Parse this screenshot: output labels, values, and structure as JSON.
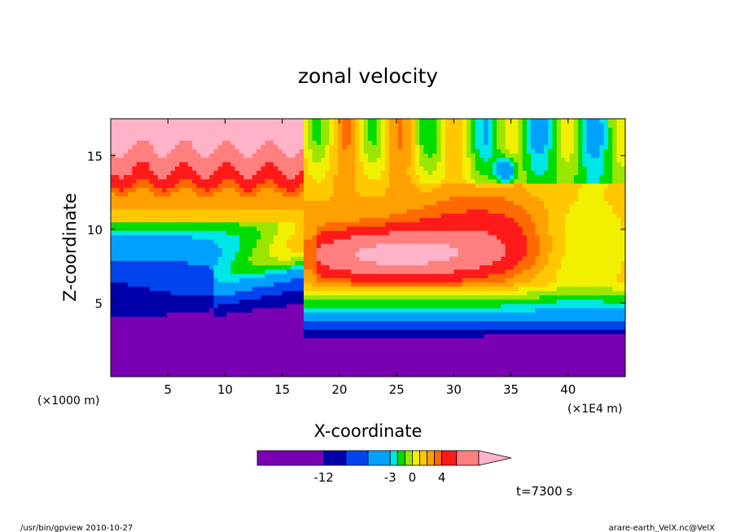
{
  "chart_data": {
    "type": "heatmap",
    "title": "zonal velocity",
    "xlabel": "X-coordinate",
    "ylabel": "Z-coordinate",
    "x_unit_label": "(×1E4 m)",
    "y_unit_label": "(×1000 m)",
    "xlim": [
      0,
      45
    ],
    "ylim": [
      0,
      17.5
    ],
    "x_ticks": [
      5,
      10,
      15,
      20,
      25,
      30,
      35,
      40
    ],
    "y_ticks": [
      5,
      10,
      15
    ],
    "colorbar": {
      "levels": [
        -21,
        -12,
        -9,
        -6,
        -3,
        -2,
        -1,
        0,
        1,
        2,
        3,
        4,
        6,
        9
      ],
      "colors": [
        "#e600b4",
        "#7a00b4",
        "#0000aa",
        "#0044ee",
        "#00a0ff",
        "#00e6e6",
        "#00dc00",
        "#9ae600",
        "#f0f000",
        "#ffc800",
        "#ffa000",
        "#ff6a00",
        "#ff1a1a",
        "#ff7f7f",
        "#ffb3c8"
      ],
      "tick_labels": [
        {
          "label": "-12",
          "value": -12
        },
        {
          "label": "-3",
          "value": -3
        },
        {
          "label": "0",
          "value": 0
        },
        {
          "label": "4",
          "value": 4
        }
      ]
    },
    "time_label": "t=7300 s",
    "footer_left": "/usr/bin/gpview   2010-10-27",
    "footer_right": "arare-earth_VelX.nc@VelX"
  }
}
